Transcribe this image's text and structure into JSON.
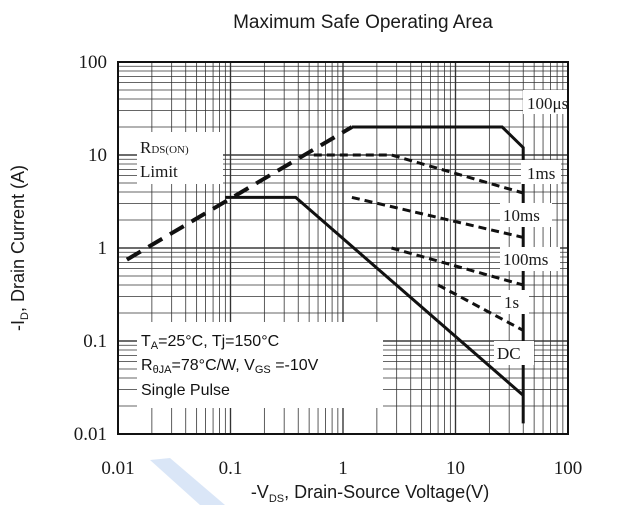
{
  "chart_data": {
    "type": "line",
    "title": "Maximum Safe Operating Area",
    "xlabel": {
      "prefix": "-V",
      "sub": "DS",
      "suffix": ", Drain-Source Voltage(V)"
    },
    "ylabel": {
      "prefix": "-I",
      "sub": "D",
      "suffix": ", Drain Current (A)"
    },
    "x_scale": "log",
    "y_scale": "log",
    "xlim": [
      0.01,
      100
    ],
    "ylim": [
      0.01,
      100
    ],
    "x_ticks": [
      "0.01",
      "0.1",
      "1",
      "10",
      "100"
    ],
    "y_ticks": [
      "100",
      "10",
      "1",
      "0.1",
      "0.01"
    ],
    "grid": true,
    "series": [
      {
        "name": "RDS(ON) Limit",
        "style": "dashed",
        "points": [
          [
            0.012,
            0.75
          ],
          [
            1.2,
            20
          ]
        ]
      },
      {
        "name": "100μs",
        "style": "solid",
        "points": [
          [
            1.2,
            20
          ],
          [
            26,
            20
          ],
          [
            40,
            12
          ],
          [
            40,
            0.013
          ]
        ]
      },
      {
        "name": "1ms",
        "style": "dashed",
        "points": [
          [
            0.55,
            10
          ],
          [
            2.7,
            10
          ],
          [
            40,
            3.9
          ]
        ]
      },
      {
        "name": "10ms",
        "style": "dashed",
        "points": [
          [
            1.2,
            3.5
          ],
          [
            40,
            1.3
          ]
        ]
      },
      {
        "name": "100ms",
        "style": "dashed",
        "points": [
          [
            2.7,
            1
          ],
          [
            40,
            0.4
          ]
        ]
      },
      {
        "name": "1s",
        "style": "dashed",
        "points": [
          [
            7.0,
            0.4
          ],
          [
            40,
            0.13
          ]
        ]
      },
      {
        "name": "DC",
        "style": "solid",
        "points": [
          [
            0.09,
            3.5
          ],
          [
            0.38,
            3.5
          ],
          [
            40,
            0.026
          ]
        ]
      }
    ],
    "curve_labels": {
      "us100": "100μs",
      "ms1": "1ms",
      "ms10": "10ms",
      "ms100": "100ms",
      "s1": "1s",
      "dc": "DC",
      "rds_main": "R",
      "rds_sub": "DS(ON)",
      "limit": "Limit"
    },
    "annotation": {
      "line1": "Tₐ=25°C, Tj=150°C",
      "line1_prefix": "T",
      "line1_sub": "A",
      "line1_rest": "=25°C, Tj=150°C",
      "line2_prefix": "R",
      "line2_sub": "θJA",
      "line2_mid": "=78°C/W, V",
      "line2_sub2": "GS",
      "line2_rest": " =-10V",
      "line3": "Single Pulse"
    }
  },
  "colors": {
    "grid": "#333333",
    "line": "#111111",
    "watermark": "#4a7fd9"
  }
}
